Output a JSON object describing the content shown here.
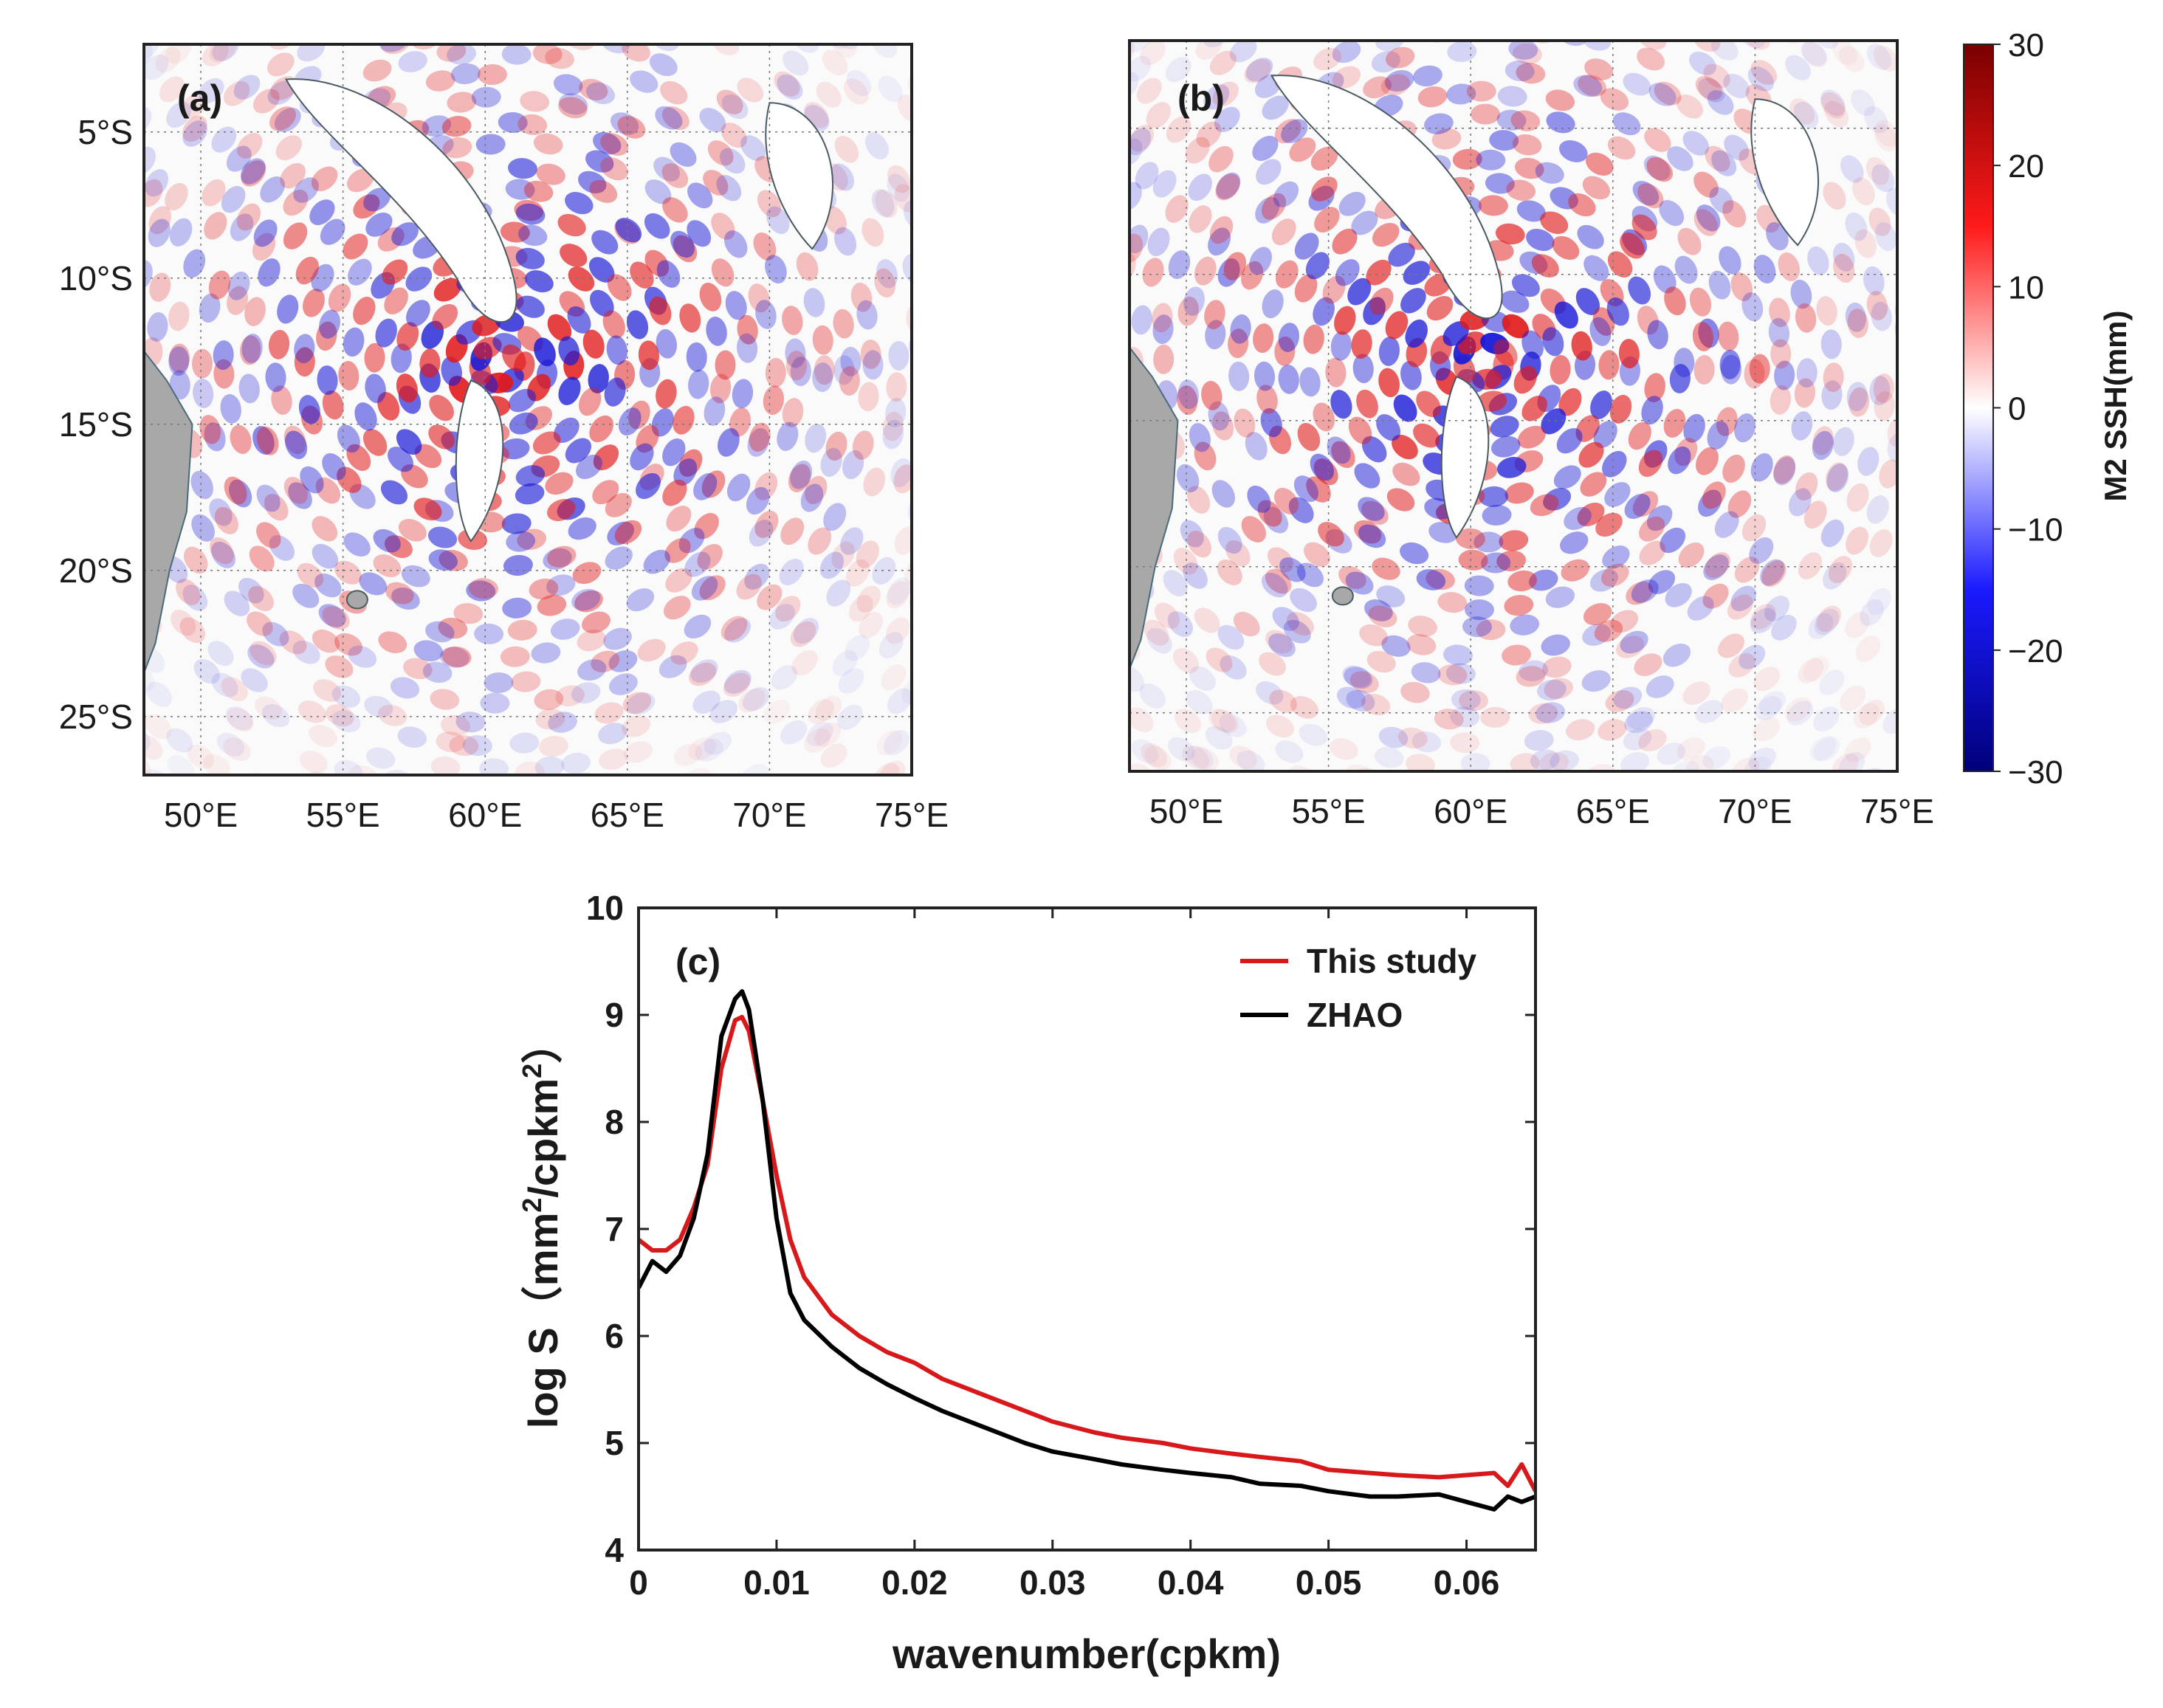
{
  "chart_data": [
    {
      "type": "heatmap",
      "panel_label": "(a)",
      "xlim": [
        48,
        75
      ],
      "ylim": [
        -27,
        -2
      ],
      "x_ticks": [
        50,
        55,
        60,
        65,
        70,
        75
      ],
      "x_tick_labels": [
        "50°E",
        "55°E",
        "60°E",
        "65°E",
        "70°E",
        "75°E"
      ],
      "y_ticks": [
        -5,
        -10,
        -15,
        -20,
        -25
      ],
      "y_tick_labels": [
        "5°S",
        "10°S",
        "15°S",
        "20°S",
        "25°S"
      ],
      "grid": true,
      "variable": "M2 SSH (mm)"
    },
    {
      "type": "heatmap",
      "panel_label": "(b)",
      "xlim": [
        48,
        75
      ],
      "ylim": [
        -27,
        -2
      ],
      "x_ticks": [
        50,
        55,
        60,
        65,
        70,
        75
      ],
      "x_tick_labels": [
        "50°E",
        "55°E",
        "60°E",
        "65°E",
        "70°E",
        "75°E"
      ],
      "grid": true,
      "variable": "M2 SSH (mm)"
    },
    {
      "type": "line",
      "panel_label": "(c)",
      "xlabel": "wavenumber(cpkm)",
      "ylabel_text": "log S（mm",
      "ylabel_exp1": "2",
      "ylabel_mid": "/cpkm",
      "ylabel_exp2": "2",
      "ylabel_close": "）",
      "xlim": [
        0,
        0.065
      ],
      "ylim": [
        4,
        10
      ],
      "x_ticks": [
        0,
        0.01,
        0.02,
        0.03,
        0.04,
        0.05,
        0.06
      ],
      "x_tick_labels": [
        "0",
        "0.01",
        "0.02",
        "0.03",
        "0.04",
        "0.05",
        "0.06"
      ],
      "y_ticks": [
        4,
        5,
        6,
        7,
        8,
        9,
        10
      ],
      "y_tick_labels": [
        "4",
        "5",
        "6",
        "7",
        "8",
        "9",
        "10"
      ],
      "legend_position": "top-right",
      "series": [
        {
          "name": "This study",
          "color": "#d7191c",
          "x": [
            0,
            0.001,
            0.002,
            0.003,
            0.004,
            0.005,
            0.006,
            0.007,
            0.0075,
            0.008,
            0.009,
            0.01,
            0.011,
            0.012,
            0.014,
            0.016,
            0.018,
            0.02,
            0.022,
            0.025,
            0.028,
            0.03,
            0.033,
            0.035,
            0.038,
            0.04,
            0.043,
            0.045,
            0.048,
            0.05,
            0.053,
            0.055,
            0.058,
            0.06,
            0.062,
            0.063,
            0.064,
            0.065
          ],
          "values": [
            6.9,
            6.8,
            6.8,
            6.9,
            7.2,
            7.6,
            8.5,
            8.95,
            8.98,
            8.85,
            8.2,
            7.5,
            6.9,
            6.55,
            6.2,
            6.0,
            5.85,
            5.75,
            5.6,
            5.45,
            5.3,
            5.2,
            5.1,
            5.05,
            5.0,
            4.95,
            4.9,
            4.87,
            4.83,
            4.75,
            4.72,
            4.7,
            4.68,
            4.7,
            4.72,
            4.6,
            4.8,
            4.55
          ]
        },
        {
          "name": "ZHAO",
          "color": "#000000",
          "x": [
            0,
            0.001,
            0.002,
            0.003,
            0.004,
            0.005,
            0.006,
            0.007,
            0.0075,
            0.008,
            0.009,
            0.01,
            0.011,
            0.012,
            0.014,
            0.016,
            0.018,
            0.02,
            0.022,
            0.025,
            0.028,
            0.03,
            0.033,
            0.035,
            0.038,
            0.04,
            0.043,
            0.045,
            0.048,
            0.05,
            0.053,
            0.055,
            0.058,
            0.06,
            0.062,
            0.063,
            0.064,
            0.065
          ],
          "values": [
            6.45,
            6.7,
            6.6,
            6.75,
            7.1,
            7.7,
            8.8,
            9.15,
            9.22,
            9.05,
            8.2,
            7.1,
            6.4,
            6.15,
            5.9,
            5.7,
            5.55,
            5.42,
            5.3,
            5.15,
            5.0,
            4.92,
            4.85,
            4.8,
            4.75,
            4.72,
            4.68,
            4.62,
            4.6,
            4.55,
            4.5,
            4.5,
            4.52,
            4.45,
            4.38,
            4.5,
            4.45,
            4.5
          ]
        }
      ]
    }
  ],
  "colorbar": {
    "label": "M2 SSH(mm)",
    "ticks": [
      30,
      20,
      10,
      0,
      -10,
      -20,
      -30
    ],
    "tick_labels": [
      "30",
      "20",
      "10",
      "0",
      "−10",
      "−20",
      "−30"
    ],
    "colors": [
      "#7a0000",
      "#ff1a1a",
      "#ffffff",
      "#1a1aff",
      "#00007a"
    ]
  }
}
